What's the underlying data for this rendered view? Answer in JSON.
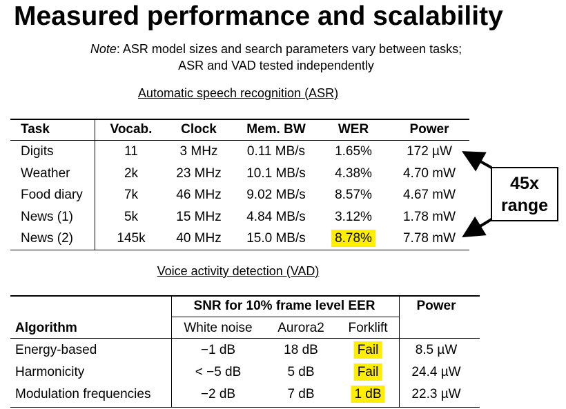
{
  "header": {
    "title": "Measured performance and scalability",
    "note_label": "Note",
    "note_line1": ": ASR model sizes and search parameters vary between tasks;",
    "note_line2": "ASR and VAD tested independently"
  },
  "asr": {
    "heading": "Automatic speech recognition (ASR)",
    "columns": [
      "Task",
      "Vocab.",
      "Clock",
      "Mem. BW",
      "WER",
      "Power"
    ],
    "rows": [
      [
        "Digits",
        "11",
        "3 MHz",
        "0.11 MB/s",
        "1.65%",
        "172 µW"
      ],
      [
        "Weather",
        "2k",
        "23 MHz",
        "10.1 MB/s",
        "4.38%",
        "4.70 mW"
      ],
      [
        "Food diary",
        "7k",
        "46 MHz",
        "9.02 MB/s",
        "8.57%",
        "4.67 mW"
      ],
      [
        "News (1)",
        "5k",
        "15 MHz",
        "4.84 MB/s",
        "3.12%",
        "1.78 mW"
      ],
      [
        "News (2)",
        "145k",
        "40 MHz",
        "15.0 MB/s",
        "8.78%",
        "7.78 mW"
      ]
    ],
    "callout": [
      "45x",
      "range"
    ]
  },
  "vad": {
    "heading": "Voice activity detection (VAD)",
    "group_header": "SNR for 10% frame level EER",
    "columns": [
      "Algorithm",
      "White noise",
      "Aurora2",
      "Forklift",
      "Power"
    ],
    "rows": [
      [
        "Energy-based",
        "−1 dB",
        "18 dB",
        "Fail",
        "8.5 µW"
      ],
      [
        "Harmonicity",
        "< −5 dB",
        "5 dB",
        "Fail",
        "24.4 µW"
      ],
      [
        "Modulation frequencies",
        "−2 dB",
        "7 dB",
        "1 dB",
        "22.3 µW"
      ]
    ]
  }
}
